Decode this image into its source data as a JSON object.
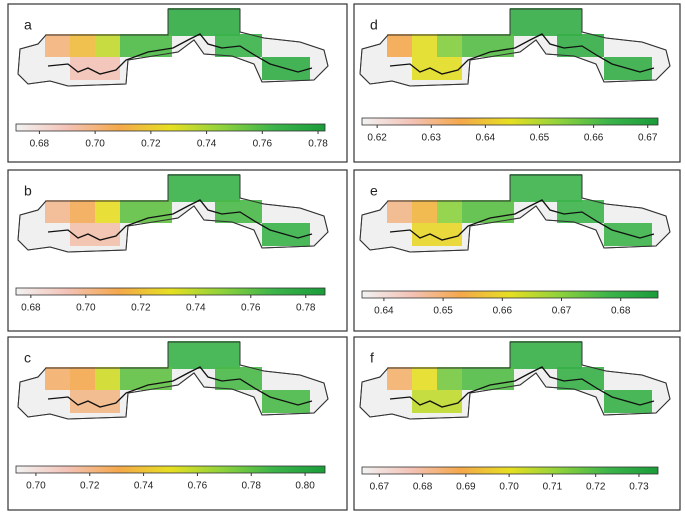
{
  "colormap": [
    "#f2f2f2",
    "#f3c2b6",
    "#f4a84a",
    "#e6df22",
    "#8fd23c",
    "#3cb44a",
    "#1a9c3a"
  ],
  "panels": [
    {
      "label": "a",
      "lim": [
        0.6716,
        0.7825
      ],
      "ticks": [
        {
          "value": 0.68,
          "label": "0.68"
        },
        {
          "value": 0.7,
          "label": "0.70"
        },
        {
          "value": 0.72,
          "label": "0.72"
        },
        {
          "value": 0.74,
          "label": "0.74"
        },
        {
          "value": 0.76,
          "label": "0.76"
        },
        {
          "value": 0.78,
          "label": "0.78"
        }
      ],
      "values": [
        0.77,
        0.7,
        0.715,
        0.735,
        0.76,
        0.765,
        0.69,
        0.77
      ]
    },
    {
      "label": "d",
      "lim": [
        0.6172,
        0.6719
      ],
      "ticks": [
        {
          "value": 0.62,
          "label": "0.62"
        },
        {
          "value": 0.63,
          "label": "0.63"
        },
        {
          "value": 0.64,
          "label": "0.64"
        },
        {
          "value": 0.65,
          "label": "0.65"
        },
        {
          "value": 0.66,
          "label": "0.66"
        },
        {
          "value": 0.67,
          "label": "0.67"
        }
      ],
      "values": [
        0.665,
        0.635,
        0.645,
        0.655,
        0.66,
        0.665,
        0.645,
        0.665
      ]
    },
    {
      "label": "b",
      "lim": [
        0.6746,
        0.787
      ],
      "ticks": [
        {
          "value": 0.68,
          "label": "0.68"
        },
        {
          "value": 0.7,
          "label": "0.70"
        },
        {
          "value": 0.72,
          "label": "0.72"
        },
        {
          "value": 0.74,
          "label": "0.74"
        },
        {
          "value": 0.76,
          "label": "0.76"
        },
        {
          "value": 0.78,
          "label": "0.78"
        }
      ],
      "values": [
        0.77,
        0.7,
        0.71,
        0.73,
        0.76,
        0.765,
        0.695,
        0.77
      ]
    },
    {
      "label": "e",
      "lim": [
        0.6363,
        0.6863
      ],
      "ticks": [
        {
          "value": 0.64,
          "label": "0.64"
        },
        {
          "value": 0.65,
          "label": "0.65"
        },
        {
          "value": 0.66,
          "label": "0.66"
        },
        {
          "value": 0.67,
          "label": "0.67"
        },
        {
          "value": 0.68,
          "label": "0.68"
        }
      ],
      "values": [
        0.678,
        0.648,
        0.655,
        0.67,
        0.675,
        0.678,
        0.66,
        0.678
      ]
    },
    {
      "label": "c",
      "lim": [
        0.6926,
        0.8074
      ],
      "ticks": [
        {
          "value": 0.7,
          "label": "0.70"
        },
        {
          "value": 0.72,
          "label": "0.72"
        },
        {
          "value": 0.74,
          "label": "0.74"
        },
        {
          "value": 0.76,
          "label": "0.76"
        },
        {
          "value": 0.78,
          "label": "0.78"
        },
        {
          "value": 0.8,
          "label": "0.80"
        }
      ],
      "values": [
        0.79,
        0.725,
        0.73,
        0.755,
        0.78,
        0.785,
        0.72,
        0.785
      ]
    },
    {
      "label": "f",
      "lim": [
        0.666,
        0.7344
      ],
      "ticks": [
        {
          "value": 0.67,
          "label": "0.67"
        },
        {
          "value": 0.68,
          "label": "0.68"
        },
        {
          "value": 0.69,
          "label": "0.69"
        },
        {
          "value": 0.7,
          "label": "0.70"
        },
        {
          "value": 0.71,
          "label": "0.71"
        },
        {
          "value": 0.72,
          "label": "0.72"
        },
        {
          "value": 0.73,
          "label": "0.73"
        }
      ],
      "values": [
        0.725,
        0.685,
        0.7,
        0.715,
        0.72,
        0.725,
        0.705,
        0.725
      ]
    }
  ]
}
